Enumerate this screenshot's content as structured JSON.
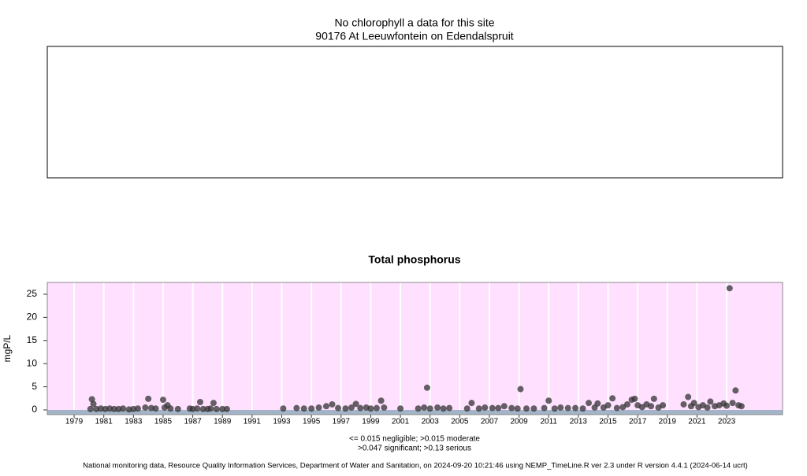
{
  "chart_data": [
    {
      "type": "empty",
      "title": "No chlorophyll a data for this site",
      "subtitle": "90176 At Leeuwfontein on Edendalspruit"
    },
    {
      "type": "scatter",
      "title": "Total phosphorus",
      "y_label": "mgP/L",
      "xlim": [
        1977.19,
        2026.77
      ],
      "ylim": [
        -1.02,
        27.55
      ],
      "xticks": [
        1979,
        1981,
        1983,
        1985,
        1987,
        1989,
        1991,
        1993,
        1995,
        1997,
        1999,
        2001,
        2003,
        2005,
        2007,
        2009,
        2011,
        2013,
        2015,
        2017,
        2019,
        2021,
        2023
      ],
      "yticks": [
        0,
        5,
        10,
        15,
        20,
        25
      ],
      "grid": true,
      "color": "#333333",
      "background": "#ffe0ff",
      "x": [
        1980.1,
        1980.2,
        1980.3,
        1980.5,
        1980.8,
        1981.1,
        1981.4,
        1981.7,
        1982.0,
        1982.3,
        1982.7,
        1983.0,
        1983.3,
        1983.8,
        1984.0,
        1984.2,
        1984.5,
        1985.0,
        1985.1,
        1985.3,
        1985.5,
        1986.0,
        1986.8,
        1987.0,
        1987.3,
        1987.5,
        1987.7,
        1988.0,
        1988.2,
        1988.4,
        1988.6,
        1989.0,
        1989.3,
        1993.1,
        1994.0,
        1994.5,
        1995.0,
        1995.5,
        1996.0,
        1996.4,
        1996.8,
        1997.3,
        1997.7,
        1998.0,
        1998.3,
        1998.7,
        1999.0,
        1999.4,
        1999.7,
        1999.9,
        2001.0,
        2002.2,
        2002.6,
        2002.8,
        2003.0,
        2003.5,
        2003.9,
        2004.3,
        2005.5,
        2005.8,
        2006.3,
        2006.7,
        2007.2,
        2007.6,
        2008.0,
        2008.5,
        2008.9,
        2009.1,
        2009.5,
        2010.0,
        2010.7,
        2011.0,
        2011.4,
        2011.8,
        2012.3,
        2012.8,
        2013.3,
        2013.7,
        2014.1,
        2014.3,
        2014.7,
        2015.0,
        2015.3,
        2015.6,
        2016.0,
        2016.3,
        2016.6,
        2016.8,
        2017.0,
        2017.3,
        2017.6,
        2017.9,
        2018.1,
        2018.4,
        2018.7,
        2020.1,
        2020.4,
        2020.6,
        2020.8,
        2021.1,
        2021.4,
        2021.7,
        2021.9,
        2022.2,
        2022.5,
        2022.8,
        2023.0,
        2023.2,
        2023.4,
        2023.6,
        2023.8,
        2024.0
      ],
      "values": [
        0.2,
        2.3,
        1.3,
        0.2,
        0.3,
        0.2,
        0.3,
        0.2,
        0.2,
        0.3,
        0.1,
        0.2,
        0.3,
        0.5,
        2.4,
        0.4,
        0.3,
        2.2,
        0.5,
        1.0,
        0.3,
        0.2,
        0.3,
        0.2,
        0.3,
        1.7,
        0.2,
        0.2,
        0.3,
        1.5,
        0.2,
        0.2,
        0.2,
        0.3,
        0.4,
        0.3,
        0.3,
        0.5,
        0.8,
        1.2,
        0.4,
        0.3,
        0.5,
        1.3,
        0.4,
        0.5,
        0.3,
        0.4,
        2.0,
        0.5,
        0.3,
        0.3,
        0.5,
        4.8,
        0.3,
        0.5,
        0.3,
        0.4,
        0.3,
        1.5,
        0.3,
        0.5,
        0.4,
        0.4,
        0.8,
        0.4,
        0.3,
        4.5,
        0.3,
        0.3,
        0.4,
        2.0,
        0.3,
        0.5,
        0.4,
        0.4,
        0.3,
        1.5,
        0.5,
        1.4,
        0.5,
        1.0,
        2.5,
        0.4,
        0.6,
        1.2,
        2.2,
        2.4,
        1.0,
        0.6,
        1.2,
        0.8,
        2.4,
        0.5,
        1.0,
        1.2,
        2.8,
        0.8,
        1.5,
        0.6,
        1.0,
        0.5,
        1.8,
        0.8,
        1.0,
        1.4,
        0.9,
        26.3,
        1.5,
        4.2,
        1.0,
        0.8
      ],
      "note_1": "<= 0.015 negligible; >0.015 moderate",
      "note_2": ">0.047 significant; >0.13 serious"
    }
  ],
  "footer": "National monitoring data, Resource Quality Information Services, Department of Water and Sanitation, on 2024-09-20 10:21:46 using NEMP_TimeLine.R ver 2.3 under R version 4.4.1 (2024-06-14 ucrt)"
}
